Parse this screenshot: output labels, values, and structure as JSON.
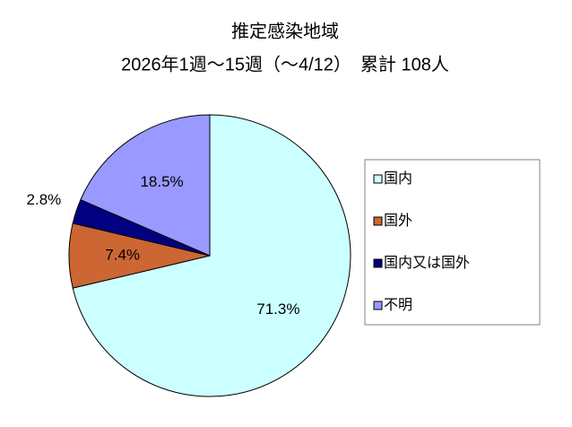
{
  "chart_data": {
    "type": "pie",
    "title": "推定感染地域",
    "subtitle": "2026年1週～15週（～4/12）　累計 108人",
    "categories": [
      "国内",
      "国外",
      "国内又は国外",
      "不明"
    ],
    "values": [
      71.3,
      7.4,
      2.8,
      18.5
    ],
    "value_labels": [
      "71.3%",
      "7.4%",
      "2.8%",
      "18.5%"
    ],
    "colors": [
      "#ccffff",
      "#cc6633",
      "#000080",
      "#9999ff"
    ],
    "legend": "right"
  }
}
